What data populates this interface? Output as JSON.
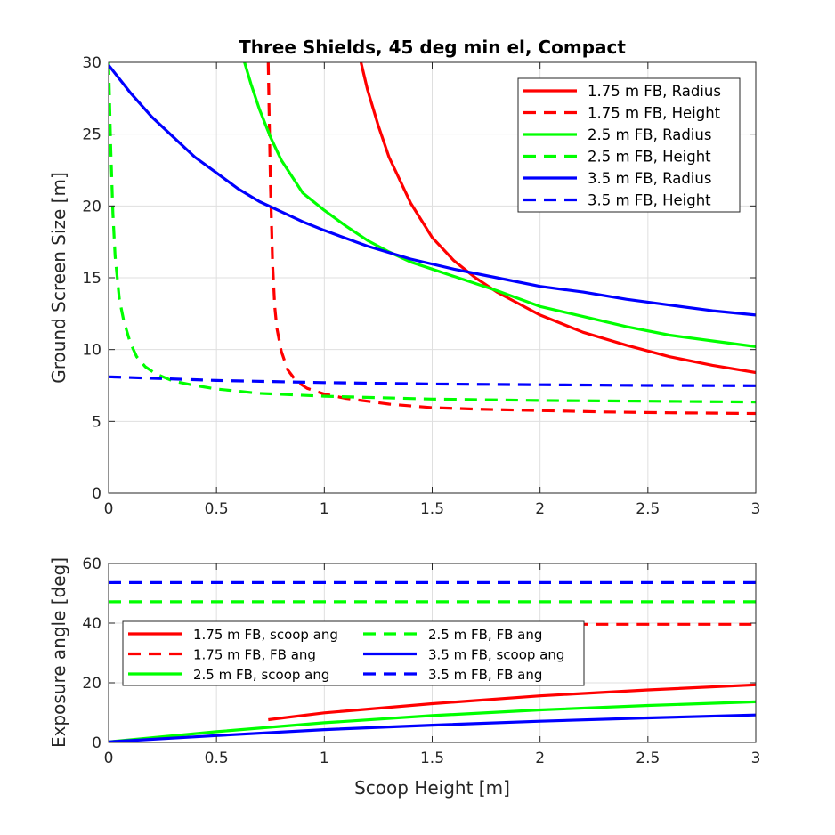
{
  "chart_data": [
    {
      "type": "line",
      "title": "Three Shields, 45 deg min el, Compact",
      "xlabel": "",
      "ylabel": "Ground Screen Size [m]",
      "xlim": [
        0,
        3
      ],
      "ylim": [
        0,
        30
      ],
      "xticks": [
        0,
        0.5,
        1,
        1.5,
        2,
        2.5,
        3
      ],
      "xtick_labels": [
        "0",
        "0.5",
        "1",
        "1.5",
        "2",
        "2.5",
        "3"
      ],
      "yticks": [
        0,
        5,
        10,
        15,
        20,
        25,
        30
      ],
      "ytick_labels": [
        "0",
        "5",
        "10",
        "15",
        "20",
        "25",
        "30"
      ],
      "grid": true,
      "legend_position": "top-right",
      "series": [
        {
          "name": "1.75 m FB, Radius",
          "color": "#ff0000",
          "dash": "solid",
          "x": [
            1.17,
            1.2,
            1.25,
            1.3,
            1.4,
            1.5,
            1.6,
            1.7,
            1.8,
            1.9,
            2.0,
            2.2,
            2.4,
            2.6,
            2.8,
            3.0
          ],
          "y": [
            30,
            28.1,
            25.6,
            23.4,
            20.2,
            17.8,
            16.2,
            15.0,
            14.0,
            13.2,
            12.4,
            11.2,
            10.3,
            9.5,
            8.9,
            8.4
          ]
        },
        {
          "name": "1.75 m FB, Height",
          "color": "#ff0000",
          "dash": "dashed",
          "x": [
            0.74,
            0.75,
            0.76,
            0.77,
            0.78,
            0.8,
            0.83,
            0.87,
            0.92,
            1.0,
            1.1,
            1.3,
            1.5,
            1.7,
            2.0,
            2.3,
            2.6,
            3.0
          ],
          "y": [
            30,
            21.5,
            16.0,
            13.0,
            11.5,
            9.9,
            8.6,
            7.8,
            7.3,
            6.9,
            6.6,
            6.2,
            5.95,
            5.85,
            5.75,
            5.65,
            5.6,
            5.55
          ]
        },
        {
          "name": "2.5 m FB, Radius",
          "color": "#00ff00",
          "dash": "solid",
          "x": [
            0.63,
            0.66,
            0.7,
            0.75,
            0.8,
            0.9,
            1.0,
            1.1,
            1.2,
            1.3,
            1.4,
            1.5,
            1.6,
            1.8,
            2.0,
            2.2,
            2.4,
            2.6,
            2.8,
            3.0
          ],
          "y": [
            30,
            28.5,
            26.7,
            24.8,
            23.2,
            20.9,
            19.7,
            18.6,
            17.6,
            16.8,
            16.1,
            15.6,
            15.1,
            14.1,
            13.0,
            12.3,
            11.6,
            11.0,
            10.6,
            10.2
          ]
        },
        {
          "name": "2.5 m FB, Height",
          "color": "#00ff00",
          "dash": "dashed",
          "x": [
            0.0,
            0.01,
            0.02,
            0.03,
            0.05,
            0.07,
            0.1,
            0.13,
            0.17,
            0.22,
            0.3,
            0.4,
            0.5,
            0.7,
            1.0,
            1.5,
            2.0,
            2.5,
            3.0
          ],
          "y": [
            30,
            24.0,
            19.5,
            16.5,
            13.5,
            12.0,
            10.5,
            9.5,
            8.8,
            8.3,
            7.8,
            7.5,
            7.25,
            6.95,
            6.75,
            6.55,
            6.45,
            6.4,
            6.35
          ]
        },
        {
          "name": "3.5 m FB, Radius",
          "color": "#0000ff",
          "dash": "solid",
          "x": [
            0.0,
            0.1,
            0.2,
            0.3,
            0.4,
            0.5,
            0.6,
            0.7,
            0.8,
            0.9,
            1.0,
            1.2,
            1.4,
            1.6,
            1.8,
            2.0,
            2.2,
            2.4,
            2.6,
            2.8,
            3.0
          ],
          "y": [
            29.8,
            27.9,
            26.2,
            24.8,
            23.4,
            22.3,
            21.2,
            20.3,
            19.6,
            18.9,
            18.3,
            17.2,
            16.3,
            15.6,
            15.0,
            14.4,
            14.0,
            13.5,
            13.1,
            12.7,
            12.4
          ]
        },
        {
          "name": "3.5 m FB, Height",
          "color": "#0000ff",
          "dash": "dashed",
          "x": [
            0.0,
            0.5,
            1.0,
            1.5,
            2.0,
            2.5,
            3.0
          ],
          "y": [
            8.1,
            7.85,
            7.7,
            7.6,
            7.55,
            7.5,
            7.48
          ]
        }
      ]
    },
    {
      "type": "line",
      "title": "",
      "xlabel": "Scoop Height [m]",
      "ylabel": "Exposure angle [deg]",
      "xlim": [
        0,
        3
      ],
      "ylim": [
        0,
        60
      ],
      "xticks": [
        0,
        0.5,
        1,
        1.5,
        2,
        2.5,
        3
      ],
      "xtick_labels": [
        "0",
        "0.5",
        "1",
        "1.5",
        "2",
        "2.5",
        "3"
      ],
      "yticks": [
        0,
        20,
        40,
        60
      ],
      "ytick_labels": [
        "0",
        "20",
        "40",
        "60"
      ],
      "grid": true,
      "legend_position": "center-left",
      "series": [
        {
          "name": "1.75 m FB, scoop ang",
          "color": "#ff0000",
          "dash": "solid",
          "x": [
            0.74,
            1.0,
            1.5,
            2.0,
            2.5,
            3.0
          ],
          "y": [
            7.6,
            9.9,
            13.0,
            15.6,
            17.6,
            19.3
          ]
        },
        {
          "name": "1.75 m FB, FB ang",
          "color": "#ff0000",
          "dash": "dashed",
          "x": [
            0.74,
            3.0
          ],
          "y": [
            39.6,
            39.6
          ]
        },
        {
          "name": "2.5 m FB, scoop ang",
          "color": "#00ff00",
          "dash": "solid",
          "x": [
            0.0,
            0.5,
            1.0,
            1.5,
            2.0,
            2.5,
            3.0
          ],
          "y": [
            0.2,
            3.6,
            6.6,
            9.0,
            10.9,
            12.4,
            13.6
          ]
        },
        {
          "name": "2.5 m FB, FB ang",
          "color": "#00ff00",
          "dash": "dashed",
          "x": [
            0.0,
            3.0
          ],
          "y": [
            47.2,
            47.2
          ]
        },
        {
          "name": "3.5 m FB, scoop ang",
          "color": "#0000ff",
          "dash": "solid",
          "x": [
            0.0,
            0.5,
            1.0,
            1.5,
            2.0,
            2.5,
            3.0
          ],
          "y": [
            0.2,
            2.3,
            4.3,
            5.8,
            7.1,
            8.2,
            9.2
          ]
        },
        {
          "name": "3.5 m FB, FB ang",
          "color": "#0000ff",
          "dash": "dashed",
          "x": [
            0.0,
            3.0
          ],
          "y": [
            53.6,
            53.6
          ]
        }
      ]
    }
  ]
}
